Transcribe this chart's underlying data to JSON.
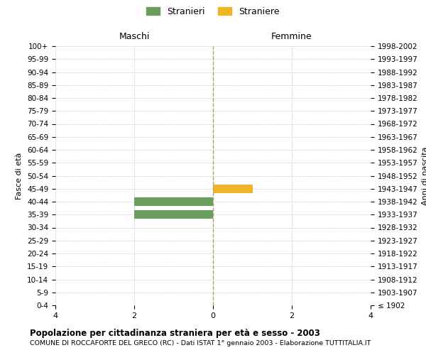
{
  "age_groups": [
    "100+",
    "95-99",
    "90-94",
    "85-89",
    "80-84",
    "75-79",
    "70-74",
    "65-69",
    "60-64",
    "55-59",
    "50-54",
    "45-49",
    "40-44",
    "35-39",
    "30-34",
    "25-29",
    "20-24",
    "15-19",
    "10-14",
    "5-9",
    "0-4"
  ],
  "birth_years": [
    "≤ 1902",
    "1903-1907",
    "1908-1912",
    "1913-1917",
    "1918-1922",
    "1923-1927",
    "1928-1932",
    "1933-1937",
    "1938-1942",
    "1943-1947",
    "1948-1952",
    "1953-1957",
    "1958-1962",
    "1963-1967",
    "1968-1972",
    "1973-1977",
    "1978-1982",
    "1983-1987",
    "1988-1992",
    "1993-1997",
    "1998-2002"
  ],
  "males": [
    0,
    0,
    0,
    0,
    0,
    0,
    0,
    0,
    0,
    0,
    0,
    0,
    2,
    2,
    0,
    0,
    0,
    0,
    0,
    0,
    0
  ],
  "females": [
    0,
    0,
    0,
    0,
    0,
    0,
    0,
    0,
    0,
    0,
    0,
    1,
    0,
    0,
    0,
    0,
    0,
    0,
    0,
    0,
    0
  ],
  "male_color": "#6a9e5e",
  "female_color": "#f0b429",
  "xlim": 4,
  "xlabel_labels": [
    "4",
    "2",
    "0",
    "2",
    "4"
  ],
  "title": "Popolazione per cittadinanza straniera per età e sesso - 2003",
  "subtitle": "COMUNE DI ROCCAFORTE DEL GRECO (RC) - Dati ISTAT 1° gennaio 2003 - Elaborazione TUTTITALIA.IT",
  "legend_stranieri": "Stranieri",
  "legend_straniere": "Straniere",
  "maschi_label": "Maschi",
  "femmine_label": "Femmine",
  "ylabel_left": "Fasce di età",
  "ylabel_right": "Anni di nascita",
  "bg_color": "#ffffff",
  "grid_color": "#cccccc"
}
